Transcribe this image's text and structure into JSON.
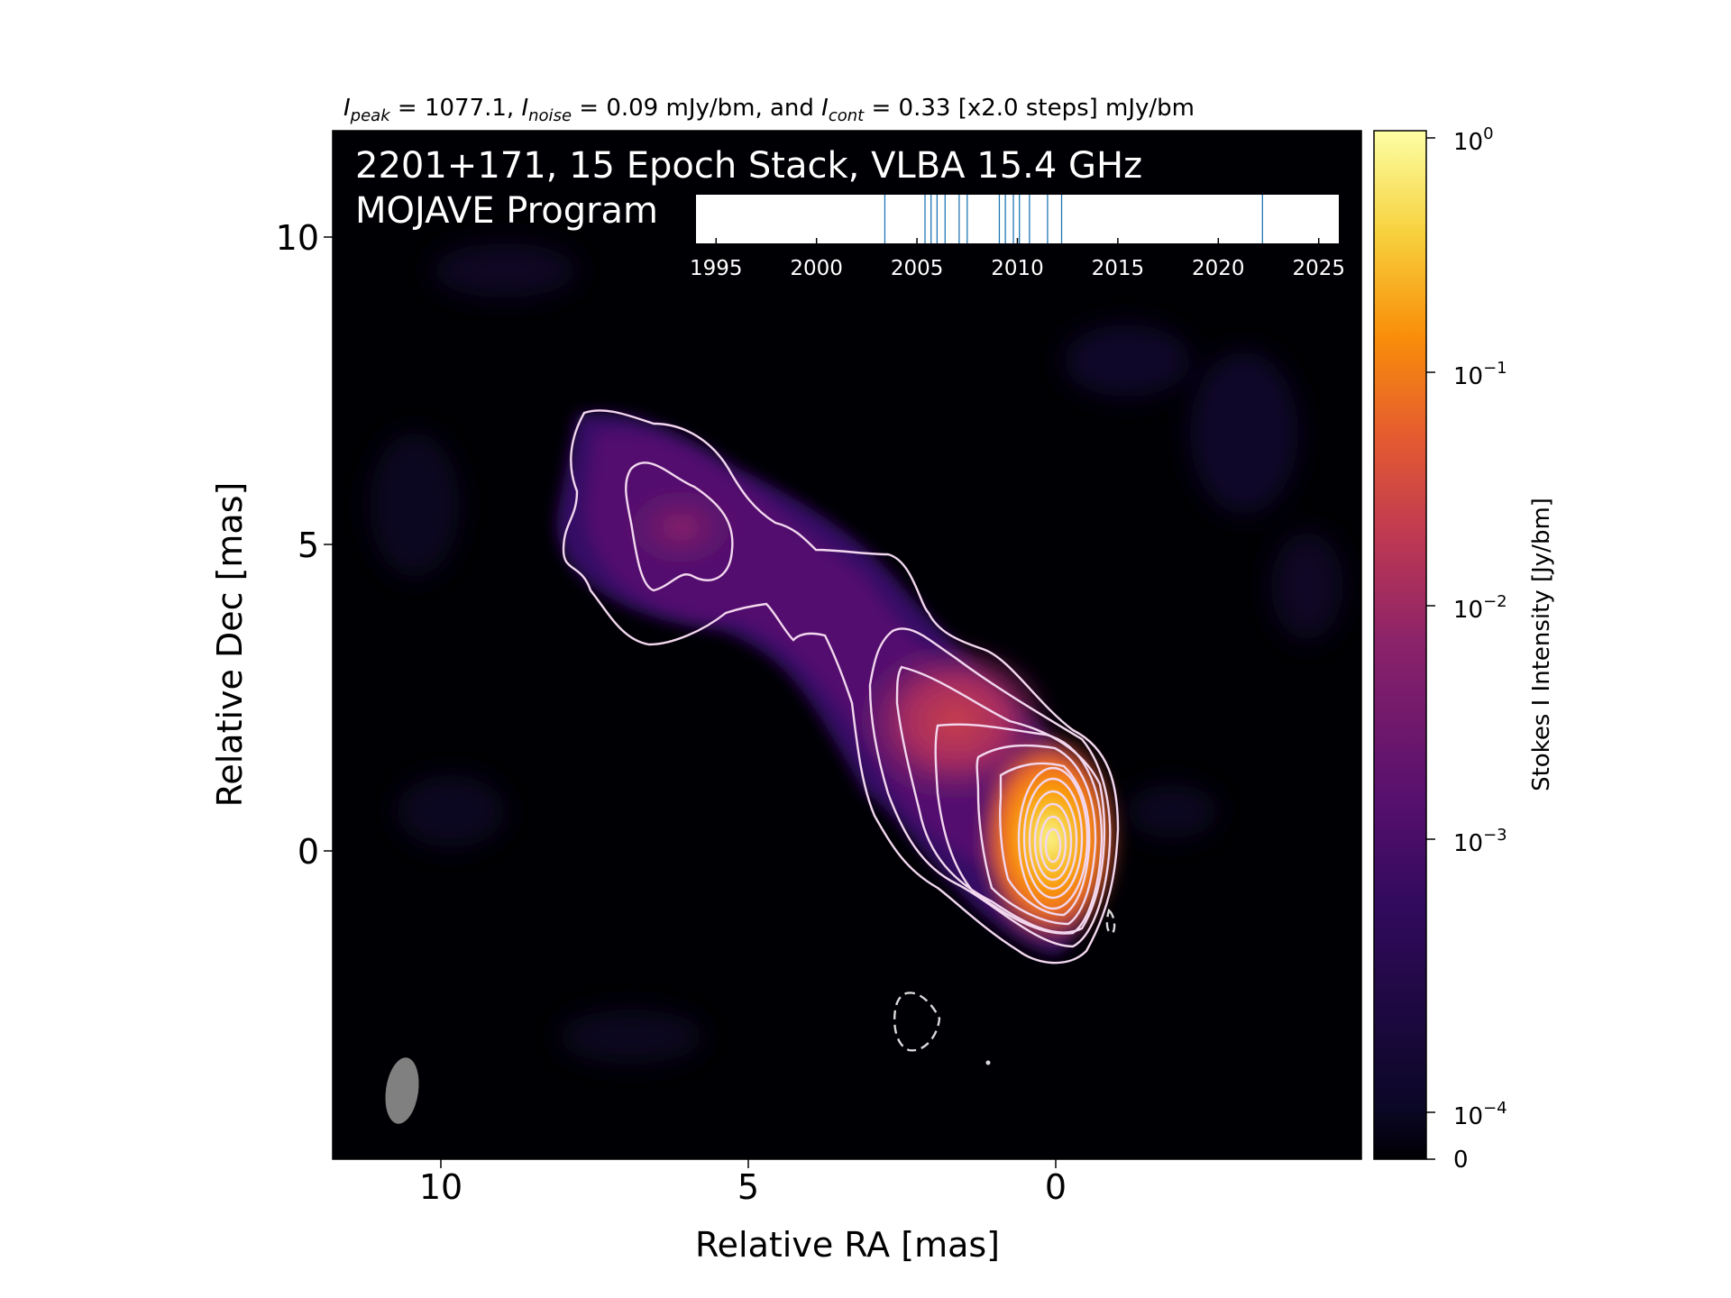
{
  "chart_data": {
    "type": "heatmap",
    "header": {
      "peak_sym": "I",
      "peak_sub": "peak",
      "peak_text": " = 1077.1, ",
      "noise_sym": "I",
      "noise_sub": "noise",
      "noise_text": " = 0.09 mJy/bm, and ",
      "cont_sym": "I",
      "cont_sub": "cont",
      "cont_text": " = 0.33 [x2.0 steps] mJy/bm"
    },
    "overlay_line1": "2201+171, 15 Epoch Stack, VLBA 15.4 GHz",
    "overlay_line2": "MOJAVE Program",
    "xlabel": "Relative RA [mas]",
    "ylabel": "Relative Dec [mas]",
    "xlim": [
      12,
      -5
    ],
    "ylim": [
      -5,
      11.7
    ],
    "x_ticks": [
      "10",
      "5",
      "0"
    ],
    "y_ticks": [
      "10",
      "5",
      "0"
    ],
    "colorbar": {
      "label": "Stokes I Intensity [Jy/bm]",
      "scale": "log",
      "ticks": [
        {
          "base": "10",
          "exp": "0"
        },
        {
          "base": "10",
          "exp": "−1"
        },
        {
          "base": "10",
          "exp": "−2"
        },
        {
          "base": "10",
          "exp": "−3"
        },
        {
          "base": "10",
          "exp": "−4"
        },
        {
          "base": "0",
          "exp": ""
        }
      ],
      "colormap": "inferno"
    },
    "epoch_timeline": {
      "tick_labels": [
        "1995",
        "2000",
        "2005",
        "2010",
        "2015",
        "2020",
        "2025"
      ],
      "xlim": [
        1994,
        2026
      ],
      "epochs": [
        2003.4,
        2005.4,
        2005.7,
        2006.0,
        2006.4,
        2007.1,
        2007.5,
        2009.1,
        2009.4,
        2009.8,
        2010.1,
        2010.6,
        2011.5,
        2012.2,
        2022.2
      ]
    },
    "peak_position": [
      0,
      0
    ],
    "contour_levels_mJy": [
      0.33,
      0.66,
      1.32,
      2.64,
      5.28,
      10.56,
      21.12,
      42.24,
      84.48,
      168.96,
      337.92,
      675.84
    ],
    "colors": {
      "contour": "#f2d7ee",
      "negative_contour": "#d9d9d9",
      "epoch_line": "#1f77b4",
      "beam": "#808080"
    }
  }
}
